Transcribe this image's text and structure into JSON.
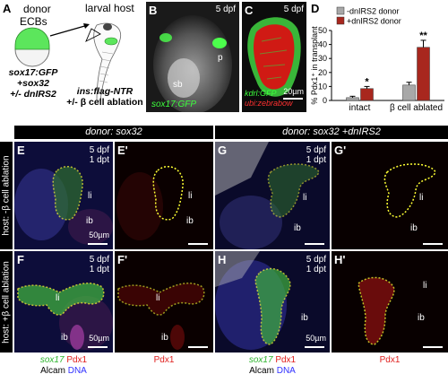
{
  "panelA": {
    "letter": "A",
    "donor_label": "donor",
    "ecbs_label": "ECBs",
    "larval_host_label": "larval host",
    "donor_genotype": [
      "sox17:GFP",
      "+sox32",
      "+/- dnIRS2"
    ],
    "host_genotype": [
      "ins:flag-NTR",
      "+/- β cell ablation"
    ]
  },
  "panelB": {
    "letter": "B",
    "stage": "5 dpf",
    "label_p": "p",
    "label_sb": "sb",
    "transgene": "sox17:GFP"
  },
  "panelC": {
    "letter": "C",
    "stage": "5 dpf",
    "transgene1": "kdrl:GFP",
    "transgene2": "ubi:zebrabow",
    "scalebar": "20µm"
  },
  "panelD": {
    "letter": "D"
  },
  "chart_data": {
    "type": "bar",
    "categories": [
      "intact",
      "β cell ablated"
    ],
    "series": [
      {
        "name": "-dnIRS2 donor",
        "color": "#a8a8a8",
        "values": [
          2,
          11
        ],
        "errors": [
          1,
          2
        ]
      },
      {
        "name": "+dnIRS2 donor",
        "color": "#a8271e",
        "values": [
          8.5,
          38
        ],
        "errors": [
          1.5,
          5
        ]
      }
    ],
    "significance": [
      "*",
      "**"
    ],
    "ylabel": "% Pdx1⁺ in transplant",
    "yticks": [
      0,
      10,
      20,
      30,
      40,
      50
    ],
    "ylim": [
      0,
      50
    ],
    "legend_position": "top",
    "grid": false
  },
  "headers": {
    "left": "donor: sox32",
    "right": "donor: sox32 +dnIRS2"
  },
  "side_labels": {
    "row1": "host: -β cell ablation",
    "row2": "host: +β cell ablation"
  },
  "grid": {
    "E": {
      "letter": "E",
      "stage": [
        "5 dpf",
        "1 dpt"
      ],
      "li": "li",
      "ib": "ib",
      "scalebar": "50µm"
    },
    "E2": {
      "letter": "E'",
      "li": "li",
      "ib": "ib"
    },
    "G": {
      "letter": "G",
      "stage": [
        "5 dpf",
        "1 dpt"
      ],
      "li": "li",
      "ib": "ib"
    },
    "G2": {
      "letter": "G'",
      "li": "li",
      "ib": "ib"
    },
    "F": {
      "letter": "F",
      "stage": [
        "5 dpf",
        "1 dpt"
      ],
      "li": "li",
      "ib": "ib",
      "scalebar": "50µm"
    },
    "F2": {
      "letter": "F'",
      "li": "li",
      "ib": "ib"
    },
    "H": {
      "letter": "H",
      "stage": [
        "5 dpf",
        "1 dpt"
      ],
      "ib": "ib",
      "scalebar": "50µm"
    },
    "H2": {
      "letter": "H'",
      "li": "li",
      "ib": "ib"
    }
  },
  "captions": {
    "left_merge": {
      "sox17": "sox17",
      "pdx1": "Pdx1",
      "alcam": "Alcam",
      "dna": "DNA"
    },
    "left_single": "Pdx1",
    "right_merge": {
      "sox17": "sox17",
      "pdx1": "Pdx1",
      "alcam": "Alcam",
      "dna": "DNA"
    },
    "right_single": "Pdx1"
  }
}
